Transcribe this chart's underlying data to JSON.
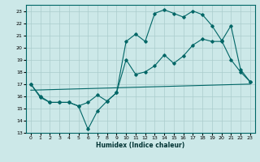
{
  "xlabel": "Humidex (Indice chaleur)",
  "xlim": [
    -0.5,
    23.5
  ],
  "ylim": [
    13,
    23.5
  ],
  "yticks": [
    13,
    14,
    15,
    16,
    17,
    18,
    19,
    20,
    21,
    22,
    23
  ],
  "xticks": [
    0,
    1,
    2,
    3,
    4,
    5,
    6,
    7,
    8,
    9,
    10,
    11,
    12,
    13,
    14,
    15,
    16,
    17,
    18,
    19,
    20,
    21,
    22,
    23
  ],
  "bg_color": "#cce8e8",
  "grid_color": "#aacccc",
  "line_color": "#006666",
  "line1_x": [
    0,
    1,
    2,
    3,
    4,
    5,
    6,
    7,
    8,
    9,
    10,
    11,
    12,
    13,
    14,
    15,
    16,
    17,
    18,
    19,
    20,
    21,
    22,
    23
  ],
  "line1_y": [
    17.0,
    16.0,
    15.5,
    15.5,
    15.5,
    15.2,
    13.3,
    14.8,
    15.6,
    16.3,
    20.5,
    21.1,
    20.5,
    22.8,
    23.1,
    22.8,
    22.5,
    23.0,
    22.7,
    21.8,
    20.6,
    19.0,
    18.0,
    17.2
  ],
  "line2_x": [
    0,
    1,
    2,
    3,
    4,
    5,
    6,
    7,
    8,
    9,
    10,
    11,
    12,
    13,
    14,
    15,
    16,
    17,
    18,
    19,
    20,
    21,
    22,
    23
  ],
  "line2_y": [
    17.0,
    15.9,
    15.5,
    15.5,
    15.5,
    15.2,
    15.5,
    16.1,
    15.6,
    16.3,
    19.0,
    17.8,
    18.0,
    18.5,
    19.4,
    18.7,
    19.3,
    20.2,
    20.7,
    20.5,
    20.5,
    21.8,
    18.2,
    17.2
  ],
  "line3_x": [
    0,
    23
  ],
  "line3_y": [
    16.5,
    17.0
  ]
}
